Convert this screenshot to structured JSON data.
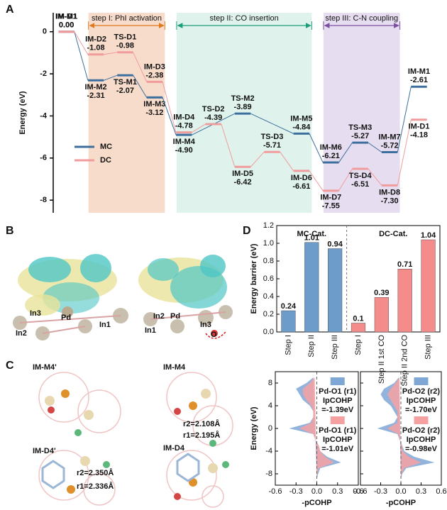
{
  "panels": [
    "A",
    "B",
    "C",
    "D"
  ],
  "panel_b": {
    "left_labels": [
      "In3",
      "Pd",
      "In1",
      "In2"
    ],
    "right_labels": [
      "In2",
      "Pd",
      "In1",
      "In3",
      "O"
    ]
  },
  "panel_c": {
    "titles": [
      "IM-M4'",
      "IM-M4",
      "IM-D4'",
      "IM-D4"
    ],
    "bonds": [
      "r2=2.108Å",
      "r1=2.195Å",
      "r2=2.350Å",
      "r1=2.336Å"
    ]
  },
  "chart_data": [
    {
      "type": "energy-profile",
      "y_label": "Energy (eV)",
      "xlim": [
        -0.45,
        12.35
      ],
      "ylim": [
        -8.6,
        0.9
      ],
      "yticks": [
        0,
        -2,
        -4,
        -6,
        -8
      ],
      "legend": "center left",
      "regions": [
        {
          "label": "step I: PhI activation",
          "start": 0.75,
          "end": 3.35,
          "color": "#e07a1f",
          "fill": "#f8dccb"
        },
        {
          "label": "step II: CO insertion",
          "start": 3.75,
          "end": 8.35,
          "color": "#1e9e78",
          "fill": "#dff3ec"
        },
        {
          "label": "step III: C-N coupling",
          "start": 8.75,
          "end": 11.35,
          "color": "#7b4fa0",
          "fill": "#e6def0"
        }
      ],
      "series": [
        {
          "name": "MC",
          "color": "#3d6f9e",
          "x": [
            0,
            1,
            2,
            3,
            4,
            6,
            8,
            9,
            10,
            11,
            12
          ],
          "labels": [
            "IM-M1",
            "IM-M2",
            "TS-M1",
            "IM-M3",
            "IM-M4",
            "TS-M2",
            "IM-M5",
            "IM-M6",
            "TS-M3",
            "IM-M7",
            "IM-M1"
          ],
          "values": [
            0,
            -2.31,
            -2.07,
            -3.12,
            -4.9,
            -3.89,
            -4.84,
            -6.21,
            -5.27,
            -5.72,
            -2.61
          ],
          "value_labels": [
            "0.00",
            "-2.31",
            "-2.07",
            "-3.12",
            "-4.90",
            "-3.89",
            "-4.84",
            "-6.21",
            "-5.27",
            "-5.72",
            "-2.61"
          ]
        },
        {
          "name": "DC",
          "color": "#f19c9c",
          "x": [
            0,
            1,
            2,
            3,
            4,
            5,
            6,
            7,
            8,
            9,
            10,
            11,
            12
          ],
          "labels": [
            "IM-D1",
            "IM-D2",
            "TS-D1",
            "IM-D3",
            "IM-D4",
            "TS-D2",
            "IM-D5",
            "TS-D3",
            "IM-D6",
            "IM-D7",
            "TS-D4",
            "IM-D8",
            "IM-D1"
          ],
          "values": [
            0,
            -1.08,
            -0.98,
            -2.38,
            -4.78,
            -4.39,
            -6.42,
            -5.71,
            -6.61,
            -7.55,
            -6.51,
            -7.3,
            -4.18
          ],
          "value_labels": [
            "0.00",
            "-1.08",
            "-0.98",
            "-2.38",
            "-4.78",
            "-4.39",
            "-6.42",
            "-5.71",
            "-6.61",
            "-7.55",
            "-6.51",
            "-7.30",
            "-4.18"
          ]
        }
      ]
    },
    {
      "type": "bar",
      "y_label": "Energy  barrier (eV)",
      "categories": [
        "Step I",
        "Step II",
        "Step III",
        "Step I",
        "Step II 1st CO",
        "Step II 2nd CO",
        "Step III"
      ],
      "ylim": [
        0,
        1.2
      ],
      "yticks": [
        {
          "value": 0,
          "label": "0.0"
        },
        0.2,
        0.4,
        0.6,
        0.8,
        {
          "value": 1,
          "label": "1.0"
        },
        1.2
      ],
      "series": [
        {
          "name": "MC-Cat.",
          "color": "#6d9ccb",
          "values": [
            0.24,
            1.01,
            0.94,
            null,
            null,
            null,
            null
          ]
        },
        {
          "name": "DC-Cat.",
          "color": "#f58c8c",
          "values": [
            null,
            null,
            null,
            0.1,
            0.39,
            0.71,
            1.04
          ]
        }
      ]
    },
    {
      "type": "cohp",
      "y_label": "Energy (eV)",
      "x_label": "-pCOHP",
      "xlim": [
        -0.6,
        0.6
      ],
      "xticks": [
        -0.6,
        -0.3,
        {
          "value": 0,
          "label": "0.0"
        },
        0.3,
        0.6
      ],
      "ylim": [
        -10,
        10
      ],
      "yticks": [
        -8,
        -4,
        0,
        4,
        8
      ],
      "y": [
        -9,
        -8,
        -7,
        -6,
        -5,
        -4,
        -3,
        -2,
        -1,
        0,
        1,
        2,
        3,
        4,
        5,
        6,
        7,
        8,
        9
      ],
      "series": [
        {
          "name": "Pd-O1 (r1)",
          "annotation": [
            "IpCOHP",
            "=-1.39eV"
          ],
          "color": "#7fa7d6",
          "values": [
            0,
            0.02,
            0.05,
            0.35,
            0.15,
            0.05,
            0.02,
            -0.02,
            -0.05,
            -0.4,
            -0.1,
            -0.05,
            -0.05,
            -0.1,
            -0.2,
            -0.25,
            -0.3,
            -0.15,
            -0.05
          ]
        },
        {
          "name": "Pd-O1 (r1)",
          "annotation": [
            "IpCOHP",
            "=-1.01eV"
          ],
          "color": "#f6a1a1",
          "values": [
            0,
            0.01,
            0.03,
            0.25,
            0.12,
            0.05,
            0.03,
            -0.02,
            -0.05,
            -0.25,
            -0.08,
            -0.05,
            -0.05,
            -0.08,
            -0.15,
            -0.2,
            -0.2,
            -0.1,
            -0.03
          ]
        }
      ]
    },
    {
      "type": "cohp",
      "x_label": "-pCOHP",
      "xlim": [
        -0.6,
        0.6
      ],
      "xticks": [
        -0.6,
        -0.3,
        {
          "value": 0,
          "label": "0.0"
        },
        0.3,
        0.6
      ],
      "ylim": [
        -10,
        10
      ],
      "yticks": [
        -8,
        -4,
        0,
        4,
        8
      ],
      "y": [
        -9,
        -8,
        -7,
        -6,
        -5,
        -4,
        -3,
        -2,
        -1,
        0,
        1,
        2,
        3,
        4,
        5,
        6,
        7,
        8,
        9
      ],
      "series": [
        {
          "name": "Pd-O2 (r2)",
          "annotation": [
            "IpCOHP",
            "=-1.70eV"
          ],
          "color": "#7fa7d6",
          "values": [
            0,
            0.02,
            0.08,
            0.5,
            0.2,
            0.05,
            0.02,
            -0.02,
            -0.05,
            -0.35,
            -0.1,
            -0.05,
            -0.1,
            -0.15,
            -0.25,
            -0.3,
            -0.25,
            -0.1,
            -0.03
          ]
        },
        {
          "name": "Pd-O2 (r2)",
          "annotation": [
            "IpCOHP",
            "=-0.98eV"
          ],
          "color": "#f6a1a1",
          "values": [
            0,
            0.01,
            0.05,
            0.3,
            0.12,
            0.03,
            0.02,
            -0.02,
            -0.04,
            -0.2,
            -0.05,
            -0.05,
            -0.05,
            -0.1,
            -0.15,
            -0.2,
            -0.15,
            -0.08,
            -0.02
          ]
        }
      ]
    }
  ]
}
